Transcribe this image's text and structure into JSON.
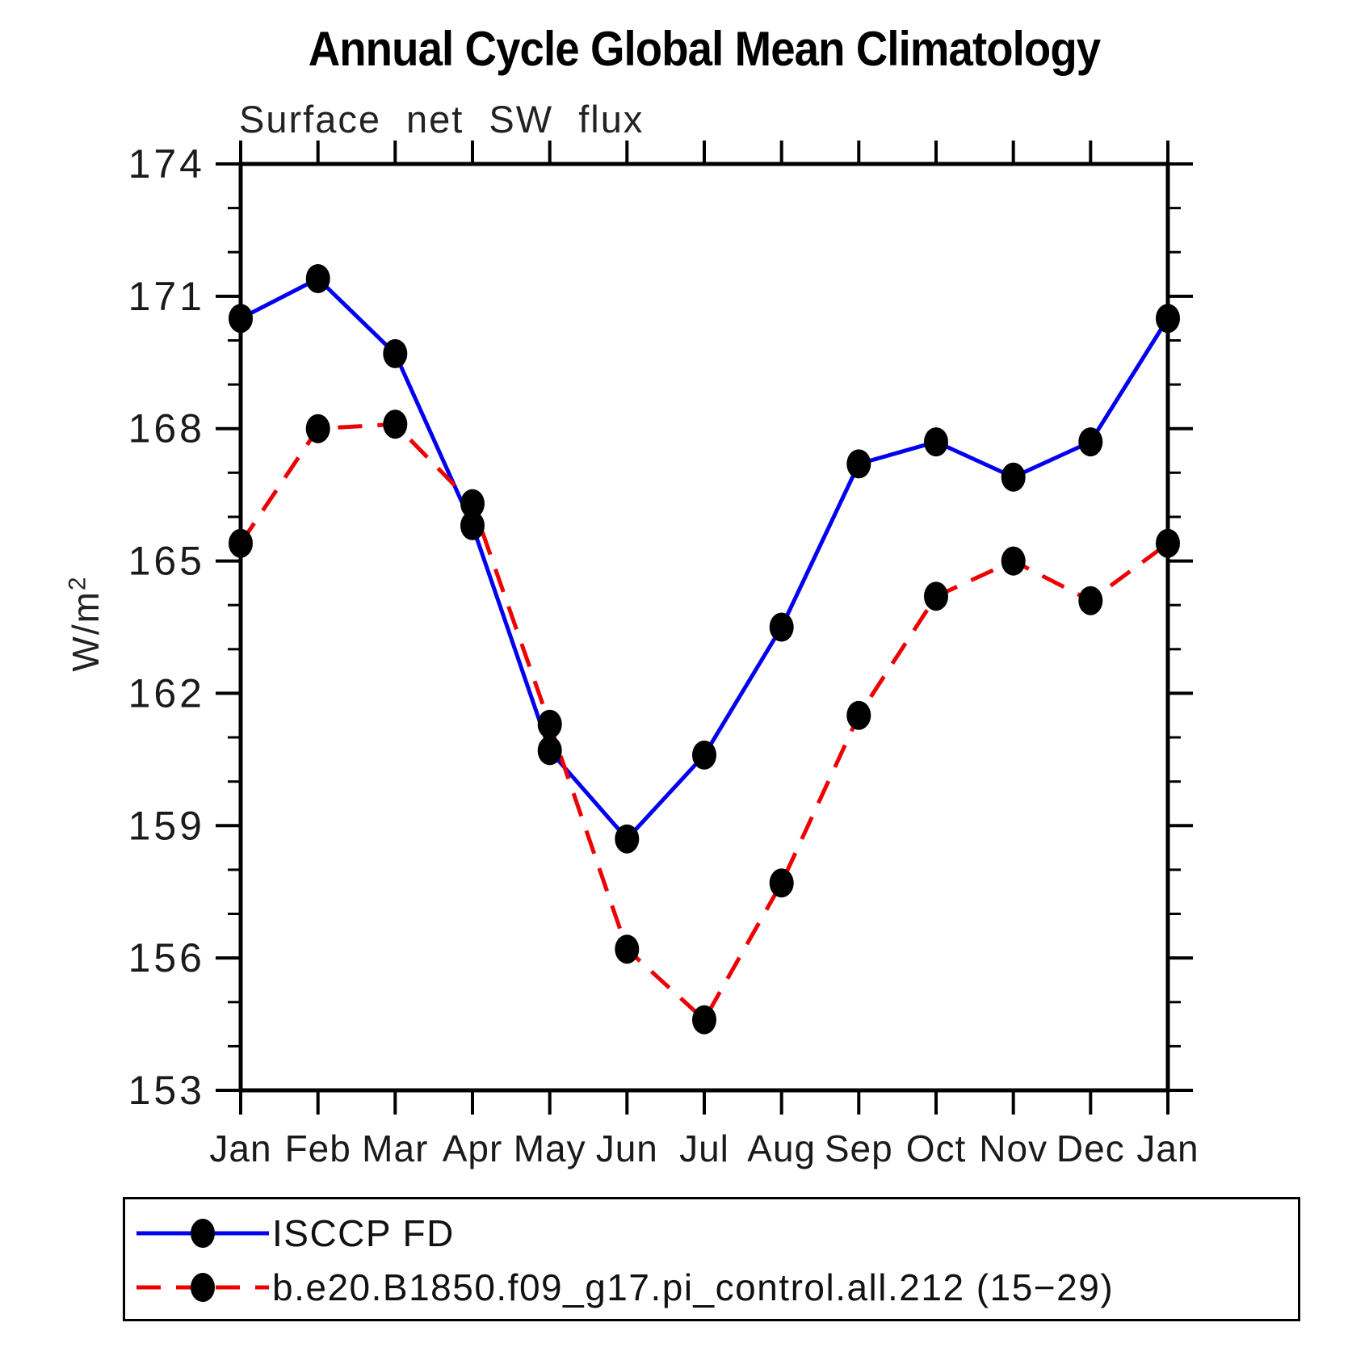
{
  "title": "Annual Cycle Global Mean Climatology",
  "subtitle": "Surface net SW flux",
  "ylabel": {
    "base": "W/m",
    "exp": "2"
  },
  "chart_data": {
    "type": "line",
    "categories": [
      "Jan",
      "Feb",
      "Mar",
      "Apr",
      "May",
      "Jun",
      "Jul",
      "Aug",
      "Sep",
      "Oct",
      "Nov",
      "Dec",
      "Jan"
    ],
    "xlabel": "",
    "ylabel": "W/m2",
    "ylim": [
      153,
      174
    ],
    "ytick_major_step": 3,
    "ytick_minor_step": 1,
    "grid": false,
    "legend_position": "bottom",
    "marker": "filled-circle",
    "marker_color": "#000000",
    "series": [
      {
        "name": "ISCCP FD",
        "color": "#0000ee",
        "style": "solid",
        "values": [
          170.5,
          171.4,
          169.7,
          165.8,
          160.7,
          158.7,
          160.6,
          163.5,
          167.2,
          167.7,
          166.9,
          167.7,
          170.5
        ]
      },
      {
        "name": "b.e20.B1850.f09_g17.pi_control.all.212 (15−29)",
        "color": "#ee0000",
        "style": "dashed",
        "values": [
          165.4,
          168.0,
          168.1,
          166.3,
          161.3,
          156.2,
          154.6,
          157.7,
          161.5,
          164.2,
          165.0,
          164.1,
          165.4
        ]
      }
    ]
  }
}
